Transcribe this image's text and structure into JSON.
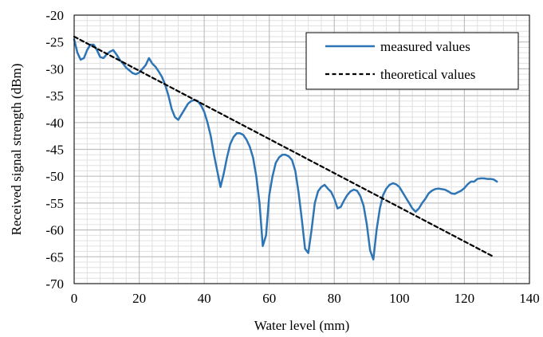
{
  "colors": {
    "measured": "#2e75b6",
    "theoretical": "#000000",
    "major_grid": "#bfbfbf",
    "minor_grid": "#e0e0e0",
    "frame": "#000000"
  },
  "chart_data": {
    "type": "line",
    "xlabel": "Water level (mm)",
    "ylabel": "Received signal strength (dBm)",
    "xlim": [
      0,
      140
    ],
    "ylim": [
      -70,
      -20
    ],
    "x_ticks": [
      0,
      20,
      40,
      60,
      80,
      100,
      120,
      140
    ],
    "y_ticks": [
      -70,
      -65,
      -60,
      -55,
      -50,
      -45,
      -40,
      -35,
      -30,
      -25,
      -20
    ],
    "grid": true,
    "minor_grid": true,
    "legend_position": "top-right",
    "series": [
      {
        "name": "measured values",
        "style": "solid",
        "points": [
          [
            0,
            -24.5
          ],
          [
            1,
            -27
          ],
          [
            2,
            -28.3
          ],
          [
            3,
            -28
          ],
          [
            4,
            -26.5
          ],
          [
            5,
            -25.5
          ],
          [
            6,
            -25.5
          ],
          [
            7,
            -26.5
          ],
          [
            8,
            -27.8
          ],
          [
            9,
            -28
          ],
          [
            10,
            -27.3
          ],
          [
            11,
            -26.8
          ],
          [
            12,
            -26.5
          ],
          [
            13,
            -27.3
          ],
          [
            14,
            -28.3
          ],
          [
            15,
            -29
          ],
          [
            16,
            -29.8
          ],
          [
            17,
            -30.3
          ],
          [
            18,
            -30.8
          ],
          [
            19,
            -31
          ],
          [
            20,
            -30.7
          ],
          [
            21,
            -30
          ],
          [
            22,
            -29.3
          ],
          [
            23,
            -28
          ],
          [
            24,
            -29
          ],
          [
            25,
            -29.6
          ],
          [
            26,
            -30.5
          ],
          [
            27,
            -31.5
          ],
          [
            28,
            -33
          ],
          [
            29,
            -35
          ],
          [
            30,
            -37.5
          ],
          [
            31,
            -39
          ],
          [
            32,
            -39.5
          ],
          [
            33,
            -38.5
          ],
          [
            34,
            -37.5
          ],
          [
            35,
            -36.5
          ],
          [
            36,
            -36
          ],
          [
            37,
            -35.8
          ],
          [
            38,
            -36
          ],
          [
            39,
            -36.8
          ],
          [
            40,
            -38
          ],
          [
            41,
            -40
          ],
          [
            42,
            -42.5
          ],
          [
            43,
            -46
          ],
          [
            44,
            -49
          ],
          [
            45,
            -52
          ],
          [
            46,
            -49.5
          ],
          [
            47,
            -46.5
          ],
          [
            48,
            -44
          ],
          [
            49,
            -42.7
          ],
          [
            50,
            -42
          ],
          [
            51,
            -42
          ],
          [
            52,
            -42.3
          ],
          [
            53,
            -43.2
          ],
          [
            54,
            -44.5
          ],
          [
            55,
            -46.5
          ],
          [
            56,
            -50
          ],
          [
            57,
            -55
          ],
          [
            58,
            -63
          ],
          [
            59,
            -61
          ],
          [
            60,
            -53.5
          ],
          [
            61,
            -50
          ],
          [
            62,
            -47.5
          ],
          [
            63,
            -46.5
          ],
          [
            64,
            -46
          ],
          [
            65,
            -46
          ],
          [
            66,
            -46.3
          ],
          [
            67,
            -47
          ],
          [
            68,
            -49
          ],
          [
            69,
            -53
          ],
          [
            70,
            -58
          ],
          [
            71,
            -63.5
          ],
          [
            72,
            -64.3
          ],
          [
            73,
            -60
          ],
          [
            74,
            -55
          ],
          [
            75,
            -52.8
          ],
          [
            76,
            -52
          ],
          [
            77,
            -51.6
          ],
          [
            78,
            -52.3
          ],
          [
            79,
            -52.9
          ],
          [
            80,
            -54.2
          ],
          [
            81,
            -56
          ],
          [
            82,
            -55.7
          ],
          [
            83,
            -54.5
          ],
          [
            84,
            -53.5
          ],
          [
            85,
            -52.8
          ],
          [
            86,
            -52.5
          ],
          [
            87,
            -52.7
          ],
          [
            88,
            -53.7
          ],
          [
            89,
            -55.5
          ],
          [
            90,
            -59
          ],
          [
            91,
            -63.8
          ],
          [
            92,
            -65.5
          ],
          [
            93,
            -60
          ],
          [
            94,
            -56
          ],
          [
            95,
            -53.5
          ],
          [
            96,
            -52.3
          ],
          [
            97,
            -51.6
          ],
          [
            98,
            -51.3
          ],
          [
            99,
            -51.5
          ],
          [
            100,
            -52
          ],
          [
            101,
            -53
          ],
          [
            102,
            -54
          ],
          [
            103,
            -55
          ],
          [
            104,
            -56
          ],
          [
            105,
            -56.6
          ],
          [
            106,
            -56
          ],
          [
            107,
            -55
          ],
          [
            108,
            -54.2
          ],
          [
            109,
            -53.2
          ],
          [
            110,
            -52.7
          ],
          [
            111,
            -52.4
          ],
          [
            112,
            -52.3
          ],
          [
            113,
            -52.4
          ],
          [
            114,
            -52.5
          ],
          [
            115,
            -52.8
          ],
          [
            116,
            -53.2
          ],
          [
            117,
            -53.3
          ],
          [
            118,
            -53
          ],
          [
            119,
            -52.7
          ],
          [
            120,
            -52.2
          ],
          [
            121,
            -51.5
          ],
          [
            122,
            -51
          ],
          [
            123,
            -51
          ],
          [
            124,
            -50.5
          ],
          [
            125,
            -50.4
          ],
          [
            126,
            -50.4
          ],
          [
            127,
            -50.5
          ],
          [
            128,
            -50.5
          ],
          [
            129,
            -50.6
          ],
          [
            130,
            -51
          ]
        ]
      },
      {
        "name": "theoretical values",
        "style": "dashed",
        "points": [
          [
            0,
            -24
          ],
          [
            129,
            -65
          ]
        ]
      }
    ]
  }
}
